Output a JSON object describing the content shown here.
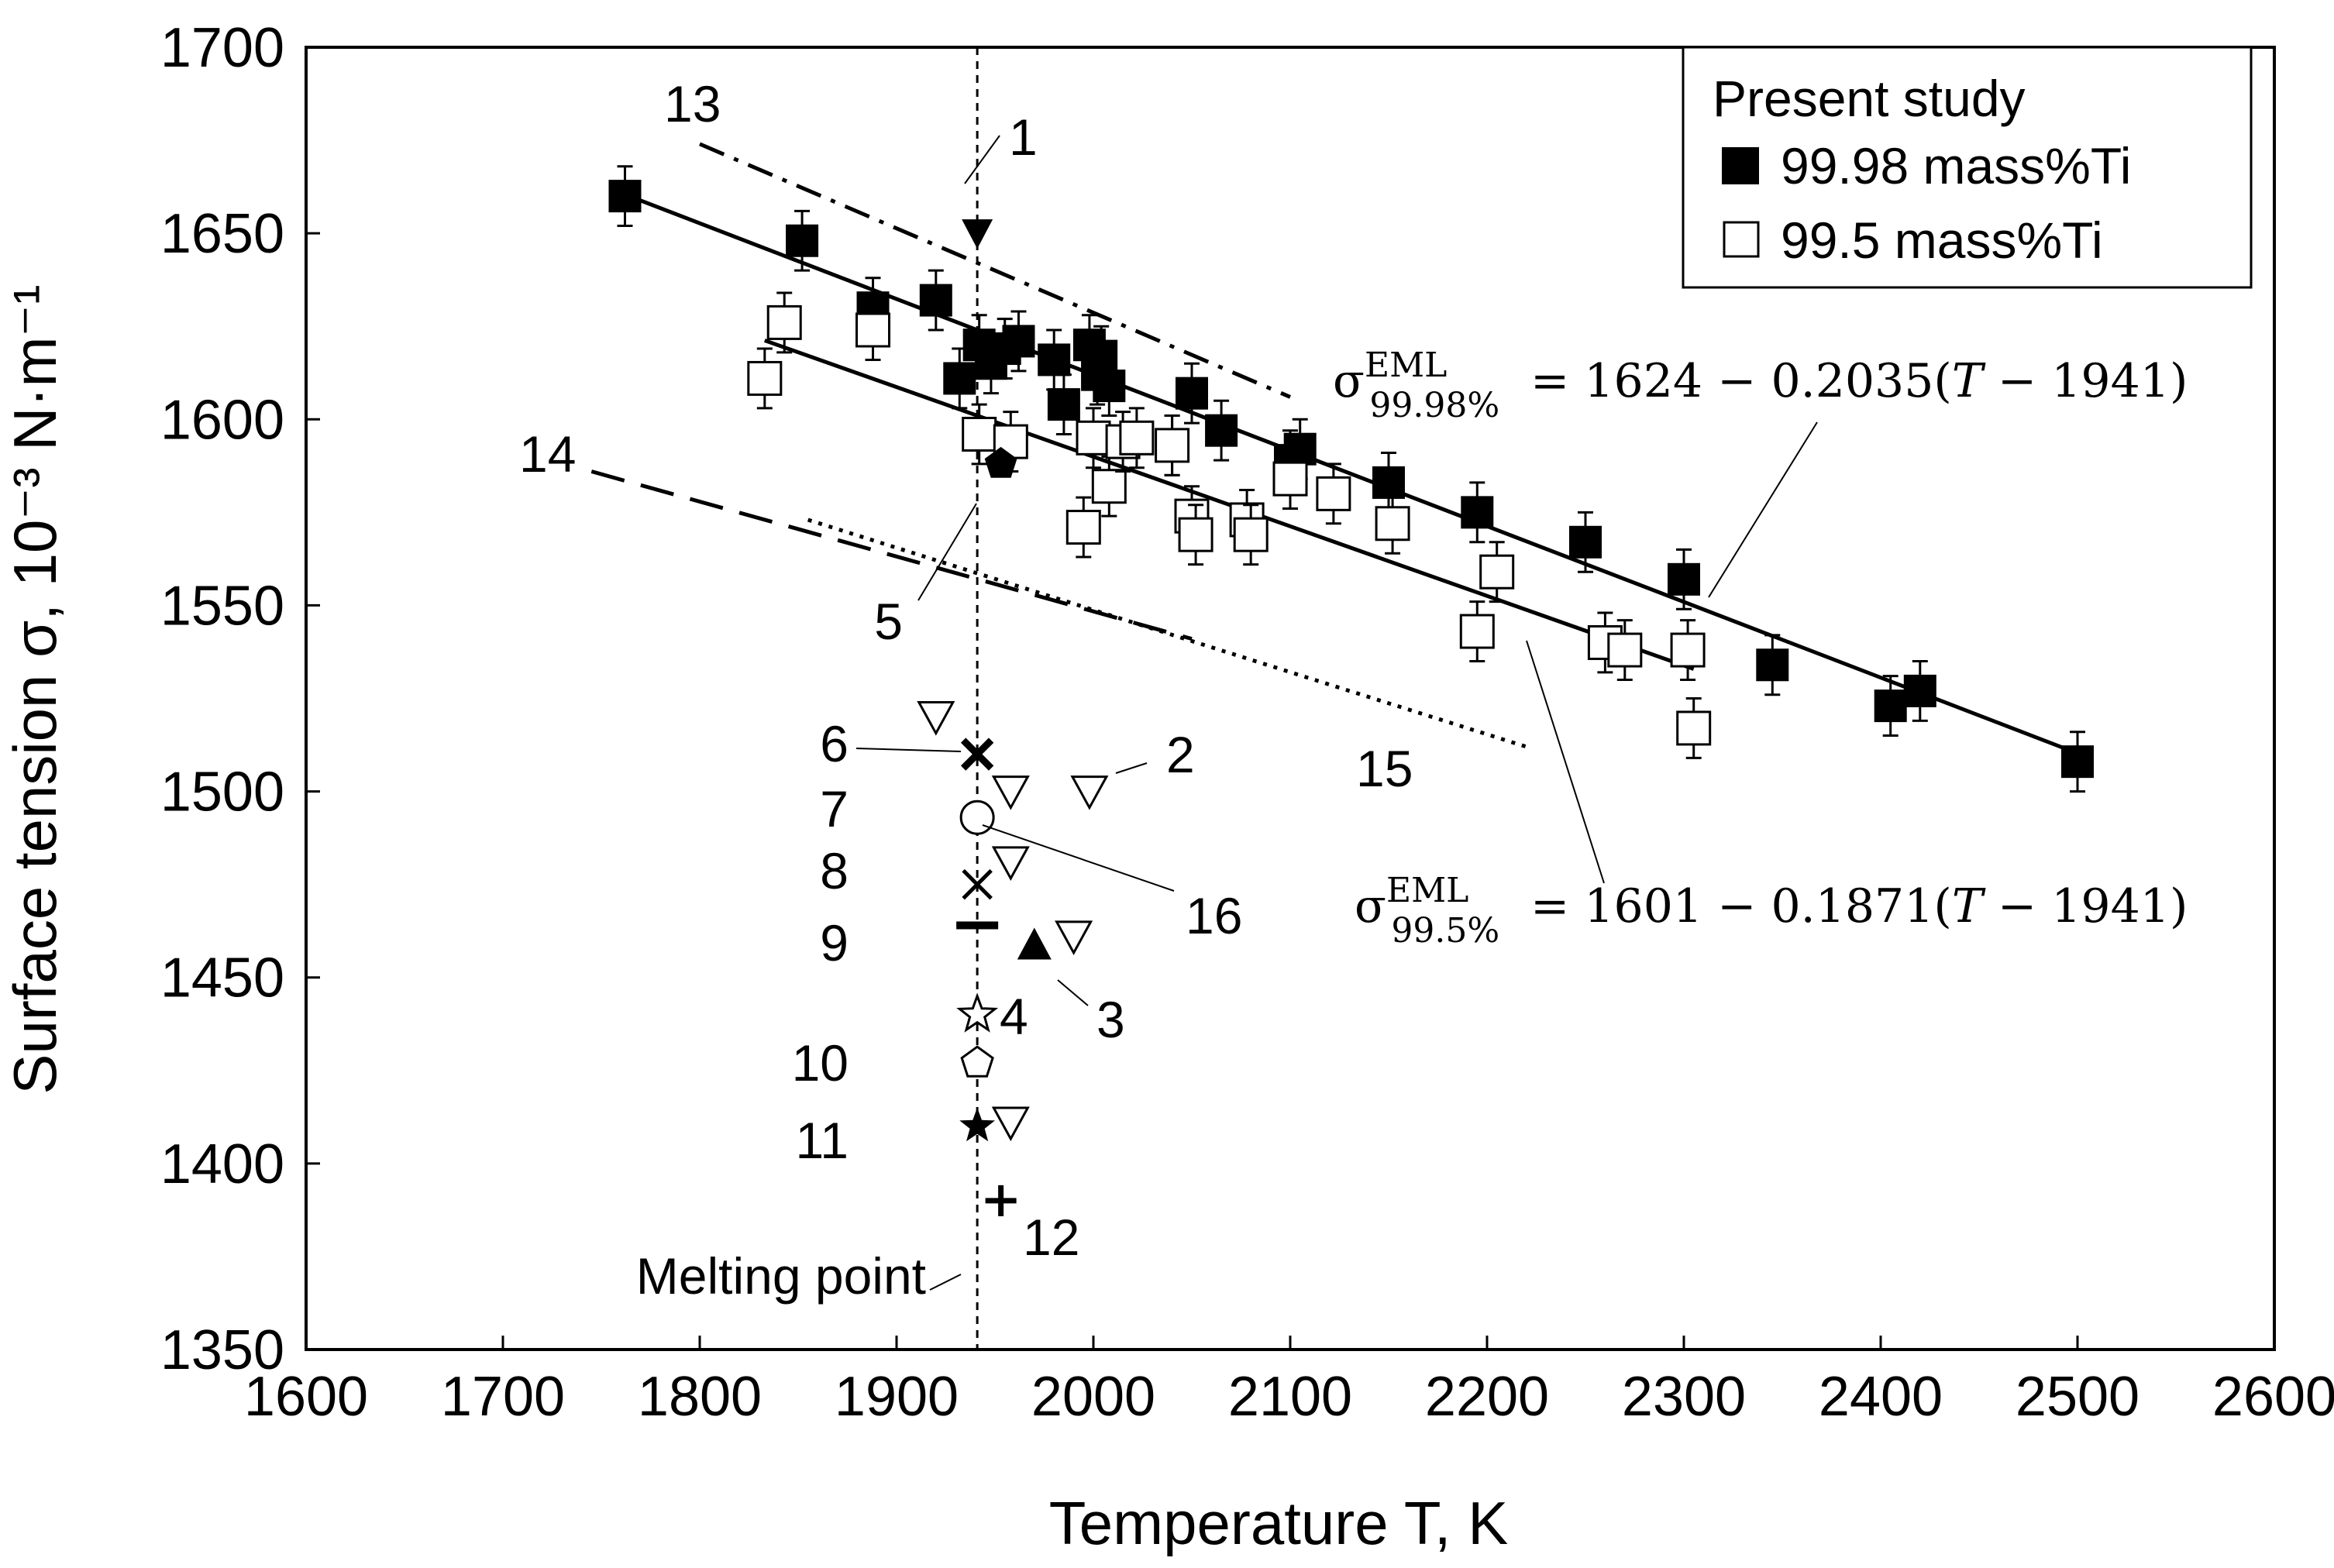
{
  "chart_data": {
    "type": "scatter",
    "xlabel": "Temperature T, K",
    "ylabel": "Surface tension σ, 10⁻³ N·m⁻¹",
    "xlim": [
      1600,
      2600
    ],
    "ylim": [
      1350,
      1700
    ],
    "xticks": [
      1600,
      1700,
      1800,
      1900,
      2000,
      2100,
      2200,
      2300,
      2400,
      2500,
      2600
    ],
    "yticks": [
      1350,
      1400,
      1450,
      1500,
      1550,
      1600,
      1650,
      1700
    ],
    "grid": false,
    "legend": {
      "title": "Present study",
      "position": "top-right",
      "entries": [
        "99.98 mass%Ti",
        "99.5 mass%Ti"
      ]
    },
    "melting_point": {
      "x": 1941,
      "label": "Melting point"
    },
    "series": [
      {
        "name": "99.98 mass%Ti",
        "marker": "filled-square",
        "x": [
          1762,
          1852,
          1888,
          1920,
          1932,
          1942,
          1948,
          1955,
          1962,
          1980,
          1985,
          1998,
          2002,
          2004,
          2008,
          2040,
          2050,
          2065,
          2100,
          2105,
          2150,
          2195,
          2250,
          2300,
          2345,
          2405,
          2420,
          2500
        ],
        "y": [
          1660,
          1648,
          1630,
          1632,
          1611,
          1620,
          1615,
          1619,
          1621,
          1616,
          1604,
          1620,
          1612,
          1617,
          1609,
          1593,
          1607,
          1597,
          1589,
          1592,
          1583,
          1575,
          1567,
          1557,
          1534,
          1523,
          1527,
          1508
        ],
        "error": 8
      },
      {
        "name": "99.5 mass%Ti",
        "marker": "open-square",
        "x": [
          1833,
          1843,
          1888,
          1942,
          1958,
          1995,
          2000,
          2008,
          2015,
          2022,
          2040,
          2050,
          2052,
          2078,
          2080,
          2100,
          2122,
          2152,
          2195,
          2205,
          2260,
          2270,
          2302,
          2305
        ],
        "y": [
          1611,
          1626,
          1624,
          1596,
          1594,
          1571,
          1595,
          1582,
          1594,
          1595,
          1593,
          1574,
          1569,
          1573,
          1569,
          1584,
          1580,
          1572,
          1543,
          1559,
          1540,
          1538,
          1538,
          1517
        ],
        "error": 8
      }
    ],
    "fits": [
      {
        "name": "99.98 mass%Ti",
        "equation": "σ = 1624 − 0.2035(T − 1941)",
        "x_range": [
          1762,
          2500
        ],
        "intercept": 1624,
        "slope": -0.2035,
        "t0": 1941
      },
      {
        "name": "99.5 mass%Ti",
        "equation": "σ = 1601 − 0.1871(T − 1941)",
        "x_range": [
          1833,
          2305
        ],
        "intercept": 1601,
        "slope": -0.1871,
        "t0": 1941
      }
    ],
    "literature": [
      {
        "label": "1",
        "type": "point",
        "marker": "filled-down-triangle",
        "x": 1941,
        "y": 1650
      },
      {
        "label": "2",
        "type": "point",
        "marker": "open-down-triangle",
        "x": 1998,
        "y": 1500
      },
      {
        "label": "3",
        "type": "point",
        "marker": "filled-triangle",
        "x": 1970,
        "y": 1459
      },
      {
        "label": "4",
        "type": "point",
        "marker": "open-star",
        "x": 1941,
        "y": 1440
      },
      {
        "label": "5",
        "type": "point",
        "marker": "filled-pentagon",
        "x": 1953,
        "y": 1588
      },
      {
        "label": "6",
        "type": "point",
        "marker": "bold-x",
        "x": 1941,
        "y": 1510
      },
      {
        "label": "7",
        "type": "point",
        "marker": "open-circle",
        "x": 1941,
        "y": 1493
      },
      {
        "label": "8",
        "type": "point",
        "marker": "x",
        "x": 1941,
        "y": 1475
      },
      {
        "label": "9",
        "type": "point",
        "marker": "dash",
        "x": 1941,
        "y": 1464
      },
      {
        "label": "10",
        "type": "point",
        "marker": "open-pentagon",
        "x": 1941,
        "y": 1427
      },
      {
        "label": "11",
        "type": "point",
        "marker": "filled-star",
        "x": 1941,
        "y": 1410
      },
      {
        "label": "12",
        "type": "point",
        "marker": "plus",
        "x": 1953,
        "y": 1390
      },
      {
        "label": "13",
        "type": "line",
        "style": "dash-dot",
        "x": [
          1800,
          2100
        ],
        "y": [
          1674,
          1606
        ]
      },
      {
        "label": "14",
        "type": "line",
        "style": "long-dash",
        "x": [
          1745,
          2050
        ],
        "y": [
          1586,
          1541
        ]
      },
      {
        "label": "15",
        "type": "line",
        "style": "dotted",
        "x": [
          1855,
          2220
        ],
        "y": [
          1573,
          1512
        ]
      },
      {
        "label": "16",
        "type": "point",
        "marker": "open-down-triangle",
        "x": [
          1920,
          1958,
          1958,
          1990,
          1958
        ],
        "y": [
          1520,
          1500,
          1481,
          1461,
          1411
        ]
      }
    ]
  }
}
